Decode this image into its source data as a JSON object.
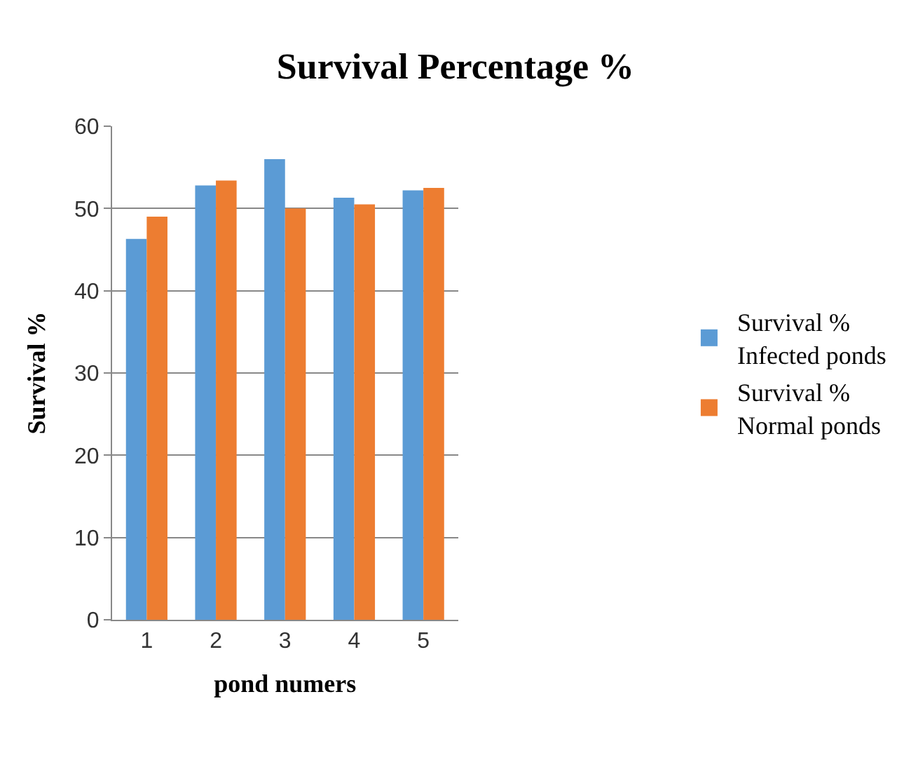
{
  "chart_data": {
    "type": "bar",
    "title": "Survival Percentage %",
    "xlabel": "pond numers",
    "ylabel": "Survival %",
    "categories": [
      "1",
      "2",
      "3",
      "4",
      "5"
    ],
    "series": [
      {
        "name": "Survival %\nInfected ponds",
        "color": "#5b9bd5",
        "values": [
          46.3,
          52.8,
          56.0,
          51.3,
          52.2
        ]
      },
      {
        "name": "Survival %\nNormal ponds",
        "color": "#ed7d31",
        "values": [
          49.0,
          53.4,
          50.0,
          50.5,
          52.5
        ]
      }
    ],
    "ylim": [
      0,
      60
    ],
    "yticks": [
      0,
      10,
      20,
      30,
      40,
      50,
      60
    ],
    "grid": "y",
    "legend": "right"
  }
}
